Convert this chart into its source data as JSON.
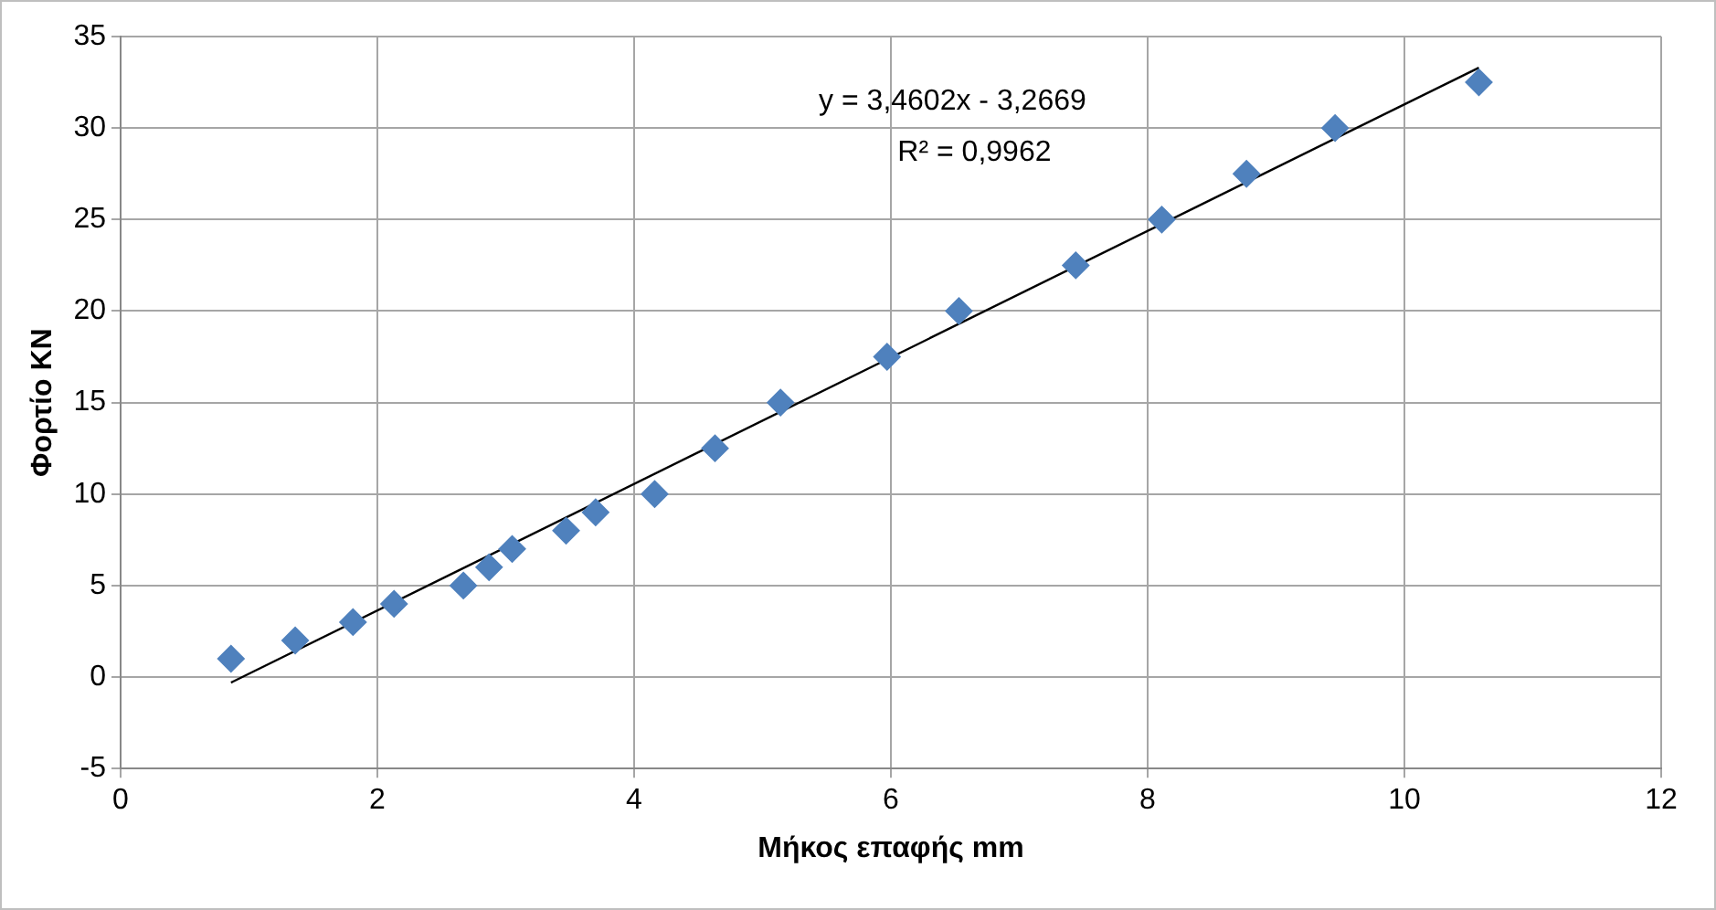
{
  "chart_data": {
    "type": "scatter",
    "xlabel": "Μήκος επαφής mm",
    "ylabel": "Φορτίο KN",
    "xlim": [
      0,
      12
    ],
    "xticks": [
      0,
      2,
      4,
      6,
      8,
      10,
      12
    ],
    "ylim": [
      -5,
      35
    ],
    "yticks": [
      -5,
      0,
      5,
      10,
      15,
      20,
      25,
      30,
      35
    ],
    "grid": true,
    "legend": false,
    "marker": "diamond",
    "series": [
      {
        "type": "scatter",
        "color": "#4f81bd",
        "x": [
          0.86,
          1.36,
          1.81,
          2.13,
          2.67,
          2.87,
          3.05,
          3.47,
          3.7,
          4.16,
          4.63,
          5.14,
          5.97,
          6.53,
          7.44,
          8.11,
          8.77,
          9.46,
          10.58
        ],
        "values": [
          1,
          2,
          3,
          4,
          5,
          6,
          7,
          8,
          9,
          10,
          12.5,
          15,
          17.5,
          20,
          22.5,
          25,
          27.5,
          30,
          32.5
        ]
      },
      {
        "type": "line",
        "color": "#000000",
        "marker": "none",
        "line_style": "solid",
        "x": [
          0.86,
          10.58
        ],
        "values": [
          -0.3,
          33.3
        ]
      }
    ],
    "annotations": [
      "y = 3,4602x - 3,2669",
      "R² = 0,9962"
    ]
  }
}
